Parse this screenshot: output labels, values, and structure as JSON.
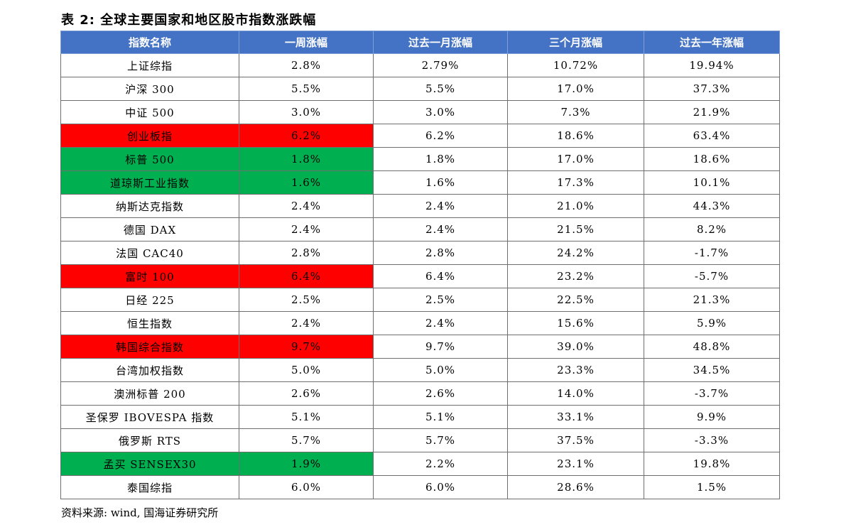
{
  "title": "表 2:  全球主要国家和地区股市指数涨跌幅",
  "headers": [
    "指数名称",
    "一周涨幅",
    "过去一月涨幅",
    "三个月涨幅",
    "过去一年涨幅"
  ],
  "colors": {
    "header_bg": "#4472c4",
    "red_highlight": "#ff0000",
    "green_highlight": "#00b050"
  },
  "rows": [
    {
      "name": "上证综指",
      "week": "2.8%",
      "month": "2.79%",
      "three_month": "10.72%",
      "year": "19.94%",
      "highlight": ""
    },
    {
      "name": "沪深 300",
      "week": "5.5%",
      "month": "5.5%",
      "three_month": "17.0%",
      "year": "37.3%",
      "highlight": ""
    },
    {
      "name": "中证 500",
      "week": "3.0%",
      "month": "3.0%",
      "three_month": "7.3%",
      "year": "21.9%",
      "highlight": ""
    },
    {
      "name": "创业板指",
      "week": "6.2%",
      "month": "6.2%",
      "three_month": "18.6%",
      "year": "63.4%",
      "highlight": "red"
    },
    {
      "name": "标普 500",
      "week": "1.8%",
      "month": "1.8%",
      "three_month": "17.0%",
      "year": "18.6%",
      "highlight": "green"
    },
    {
      "name": "道琼斯工业指数",
      "week": "1.6%",
      "month": "1.6%",
      "three_month": "17.3%",
      "year": "10.1%",
      "highlight": "green"
    },
    {
      "name": "纳斯达克指数",
      "week": "2.4%",
      "month": "2.4%",
      "three_month": "21.0%",
      "year": "44.3%",
      "highlight": ""
    },
    {
      "name": "德国 DAX",
      "week": "2.4%",
      "month": "2.4%",
      "three_month": "21.5%",
      "year": "8.2%",
      "highlight": ""
    },
    {
      "name": "法国 CAC40",
      "week": "2.8%",
      "month": "2.8%",
      "three_month": "24.2%",
      "year": "-1.7%",
      "highlight": ""
    },
    {
      "name": "富时 100",
      "week": "6.4%",
      "month": "6.4%",
      "three_month": "23.2%",
      "year": "-5.7%",
      "highlight": "red"
    },
    {
      "name": "日经 225",
      "week": "2.5%",
      "month": "2.5%",
      "three_month": "22.5%",
      "year": "21.3%",
      "highlight": ""
    },
    {
      "name": "恒生指数",
      "week": "2.4%",
      "month": "2.4%",
      "three_month": "15.6%",
      "year": "5.9%",
      "highlight": ""
    },
    {
      "name": "韩国综合指数",
      "week": "9.7%",
      "month": "9.7%",
      "three_month": "39.0%",
      "year": "48.8%",
      "highlight": "red"
    },
    {
      "name": "台湾加权指数",
      "week": "5.0%",
      "month": "5.0%",
      "three_month": "23.3%",
      "year": "34.5%",
      "highlight": ""
    },
    {
      "name": "澳洲标普 200",
      "week": "2.6%",
      "month": "2.6%",
      "three_month": "14.0%",
      "year": "-3.7%",
      "highlight": ""
    },
    {
      "name": "圣保罗 IBOVESPA 指数",
      "week": "5.1%",
      "month": "5.1%",
      "three_month": "33.1%",
      "year": "9.9%",
      "highlight": ""
    },
    {
      "name": "俄罗斯 RTS",
      "week": "5.7%",
      "month": "5.7%",
      "three_month": "37.5%",
      "year": "-3.3%",
      "highlight": ""
    },
    {
      "name": "孟买 SENSEX30",
      "week": "1.9%",
      "month": "2.2%",
      "three_month": "23.1%",
      "year": "19.8%",
      "highlight": "green"
    },
    {
      "name": "泰国综指",
      "week": "6.0%",
      "month": "6.0%",
      "three_month": "28.6%",
      "year": "1.5%",
      "highlight": ""
    }
  ],
  "source": "资料来源: wind, 国海证券研究所"
}
